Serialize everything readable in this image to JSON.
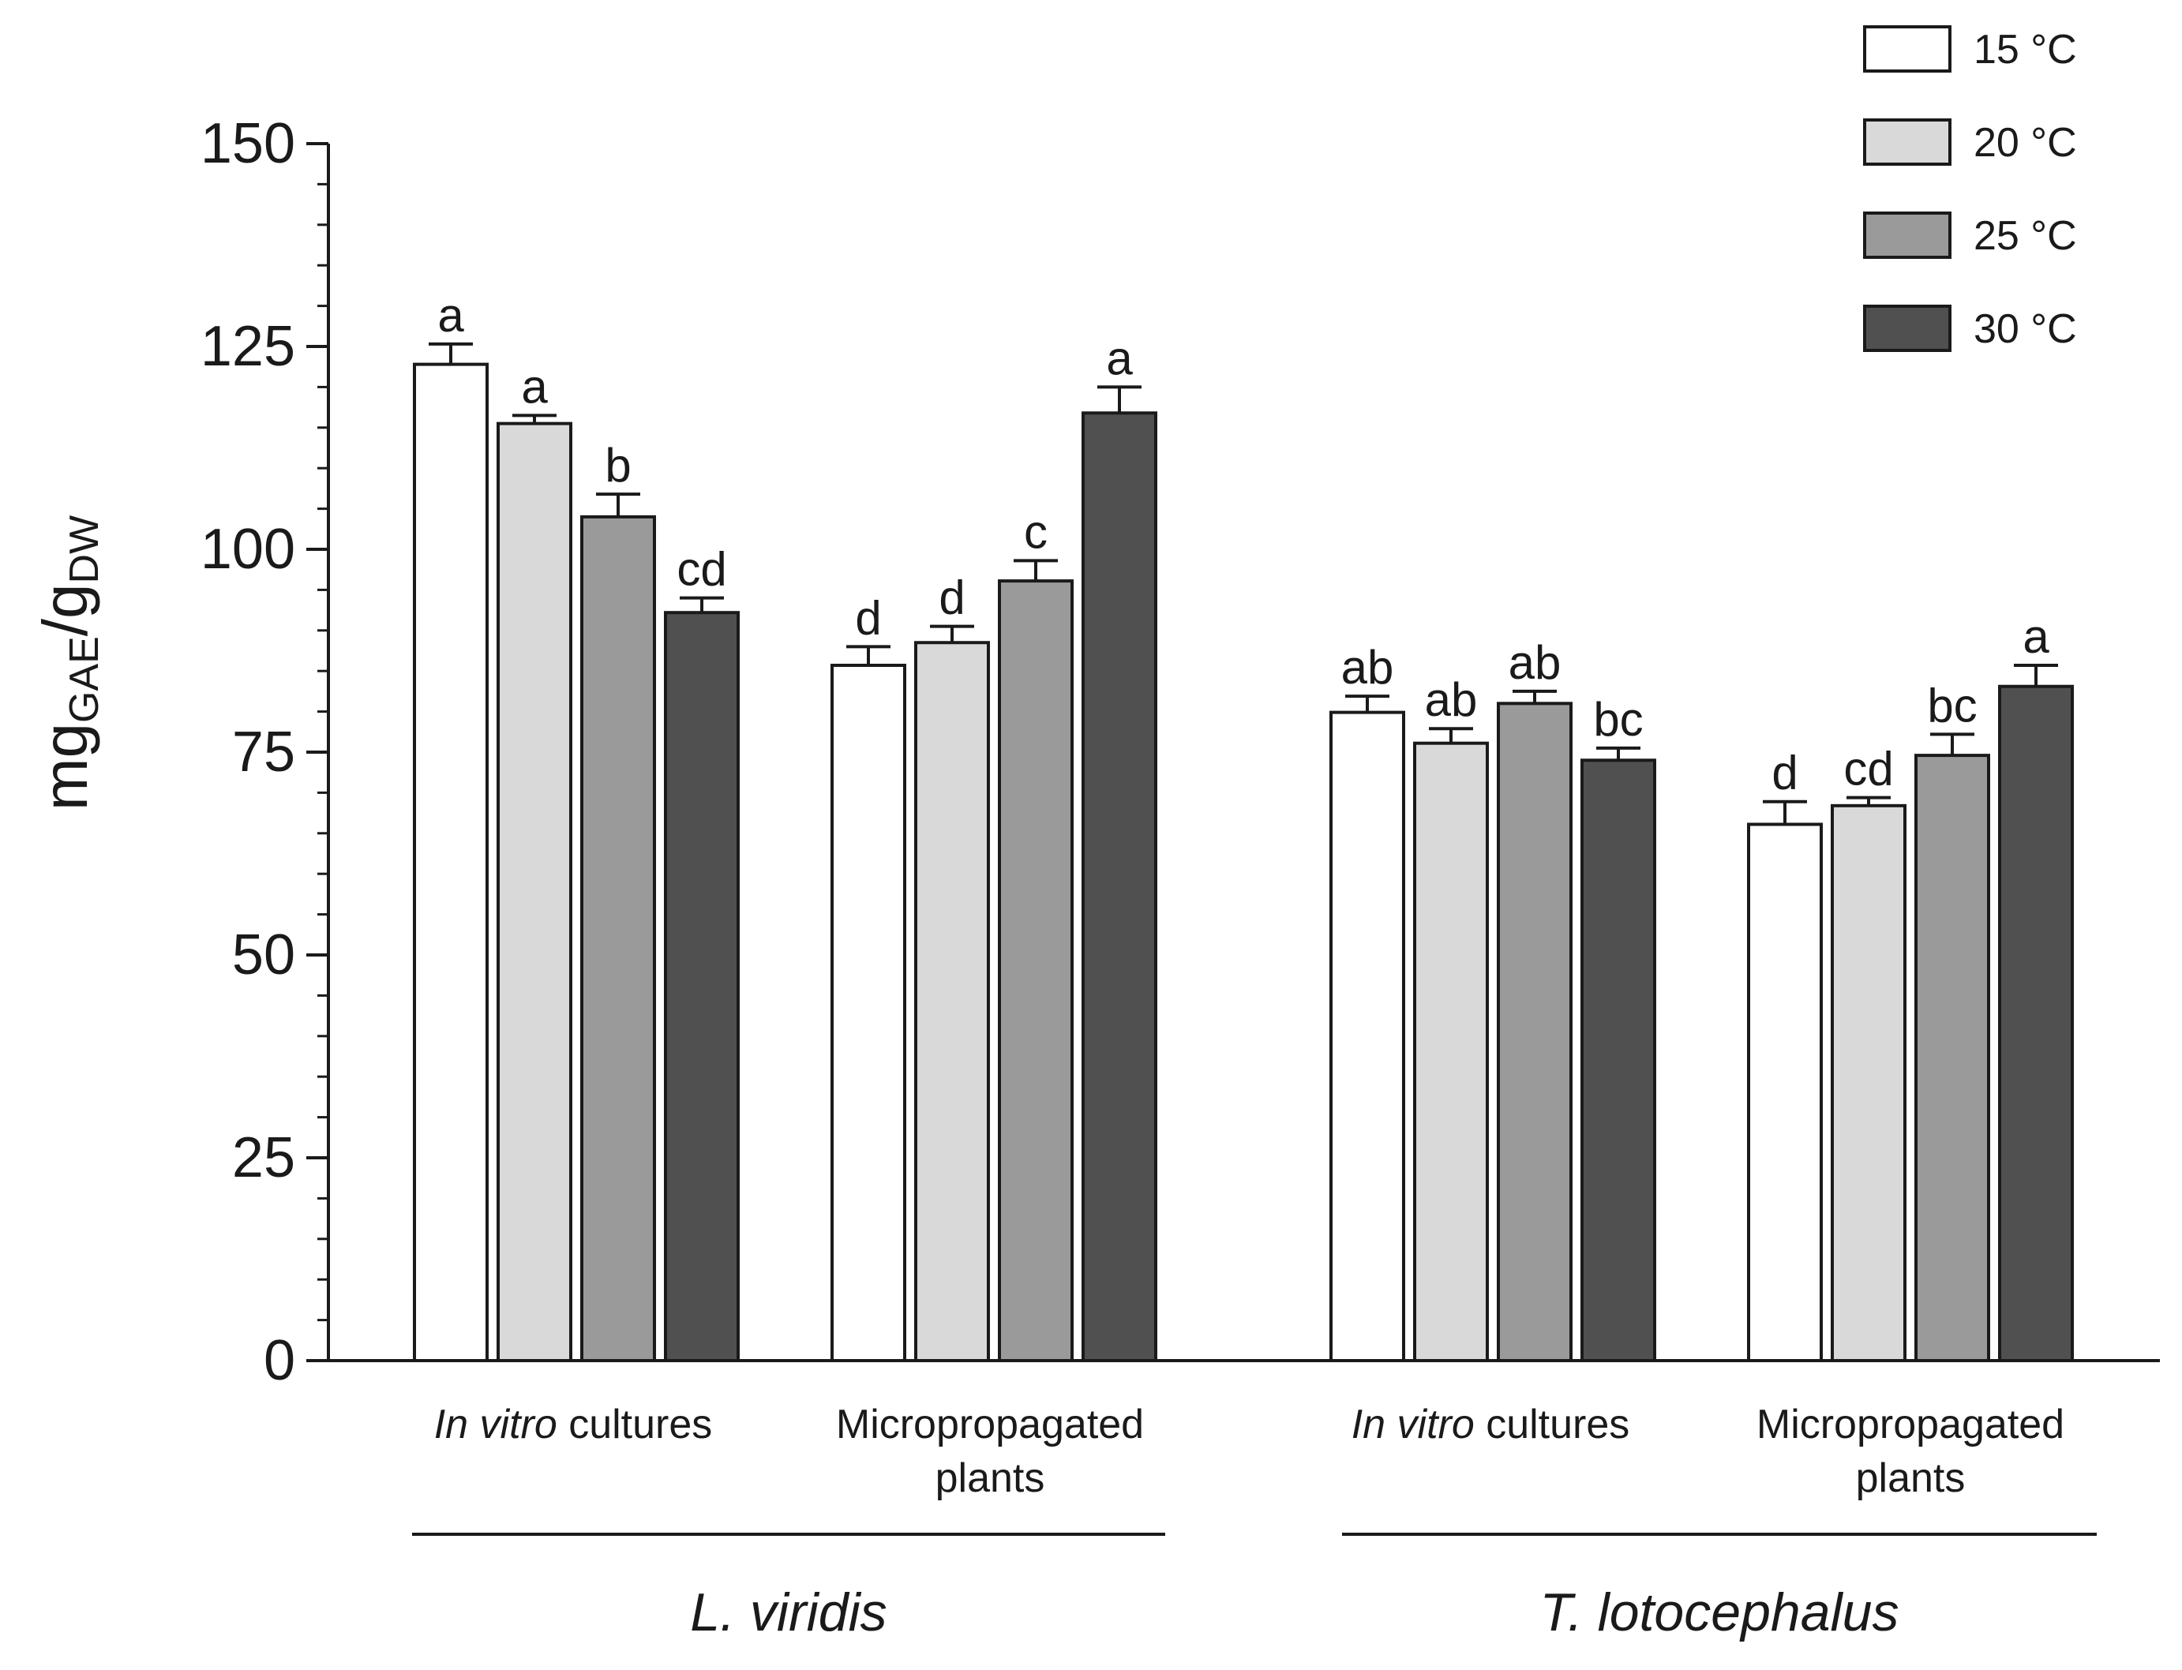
{
  "chart_data": {
    "type": "bar",
    "ylabel": {
      "main": "mg",
      "sub1": "GAE",
      "slash": "/g",
      "sub2": "DW"
    },
    "ylim": [
      0,
      150
    ],
    "yticks": [
      0,
      25,
      50,
      75,
      100,
      125,
      150
    ],
    "grid": false,
    "legend_position": "top-right",
    "species": [
      "L. viridis",
      "T. lotocephalus"
    ],
    "groups": [
      {
        "label_italic": "In vitro",
        "label_rest": " cultures",
        "species": "L. viridis",
        "values": [
          122.8,
          115.5,
          104.0,
          92.2
        ],
        "errors": [
          2.5,
          1.0,
          2.8,
          1.8
        ],
        "letters": [
          "a",
          "a",
          "b",
          "cd"
        ]
      },
      {
        "label_line1": "Micropropagated",
        "label_line2": "plants",
        "species": "L. viridis",
        "values": [
          85.7,
          88.5,
          96.1,
          116.8
        ],
        "errors": [
          2.3,
          2.0,
          2.5,
          3.2
        ],
        "letters": [
          "d",
          "d",
          "c",
          "a"
        ]
      },
      {
        "label_italic": "In vitro",
        "label_rest": " cultures",
        "species": "T. lotocephalus",
        "values": [
          79.9,
          76.1,
          81.0,
          74.0
        ],
        "errors": [
          2.0,
          1.8,
          1.5,
          1.5
        ],
        "letters": [
          "ab",
          "ab",
          "ab",
          "bc"
        ]
      },
      {
        "label_line1": "Micropropagated",
        "label_line2": "plants",
        "species": "T. lotocephalus",
        "values": [
          66.1,
          68.4,
          74.6,
          83.1
        ],
        "errors": [
          2.8,
          1.0,
          2.6,
          2.6
        ],
        "letters": [
          "d",
          "cd",
          "bc",
          "a"
        ]
      }
    ],
    "series": [
      {
        "name": "15 °C",
        "color": "#ffffff"
      },
      {
        "name": "20 °C",
        "color": "#d9d9d9"
      },
      {
        "name": "25 °C",
        "color": "#9a9a9a"
      },
      {
        "name": "30 °C",
        "color": "#505050"
      }
    ]
  }
}
